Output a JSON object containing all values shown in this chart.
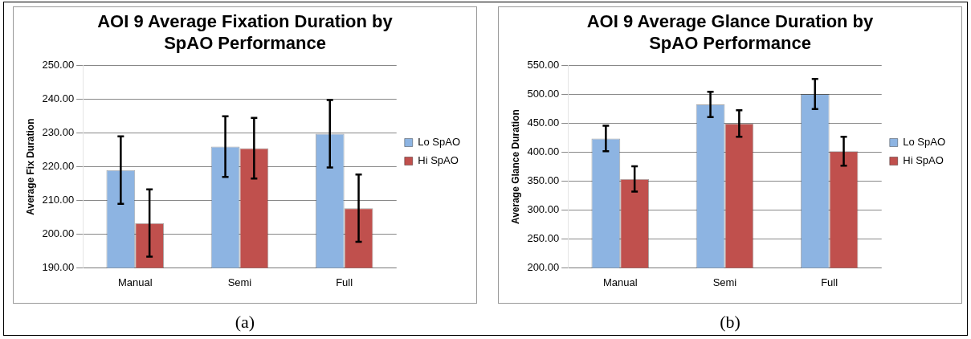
{
  "chart_data": [
    {
      "type": "bar",
      "title": "AOI 9 Average Fixation Duration by SpAO Performance",
      "ylabel": "Average Fix Duration",
      "categories": [
        "Manual",
        "Semi",
        "Full"
      ],
      "series": [
        {
          "name": "Lo SpAO",
          "color": "#8db4e2",
          "values": [
            219,
            226,
            229.8
          ],
          "errors": [
            10,
            9,
            10
          ]
        },
        {
          "name": "Hi SpAO",
          "color": "#c0504d",
          "values": [
            203.3,
            225.5,
            207.7
          ],
          "errors": [
            10,
            9,
            10
          ]
        }
      ],
      "ylim": [
        190,
        250
      ],
      "yticks": [
        {
          "value": 190,
          "label": "190.00"
        },
        {
          "value": 200,
          "label": "200.00"
        },
        {
          "value": 210,
          "label": "210.00"
        },
        {
          "value": 220,
          "label": "220.00"
        },
        {
          "value": 230,
          "label": "230.00"
        },
        {
          "value": 240,
          "label": "240.00"
        },
        {
          "value": 250,
          "label": "250.00"
        }
      ],
      "grid": "y",
      "legend": "right",
      "annotations": [
        "(a)"
      ]
    },
    {
      "type": "bar",
      "title": "AOI 9 Average Glance Duration by SpAO Performance",
      "ylabel": "Average Glance Duration",
      "categories": [
        "Manual",
        "Semi",
        "Full"
      ],
      "series": [
        {
          "name": "Lo SpAO",
          "color": "#8db4e2",
          "values": [
            424,
            483,
            501
          ],
          "errors": [
            22,
            22,
            26
          ]
        },
        {
          "name": "Hi SpAO",
          "color": "#c0504d",
          "values": [
            354,
            450,
            402
          ],
          "errors": [
            22,
            23,
            25
          ]
        }
      ],
      "ylim": [
        200,
        550
      ],
      "yticks": [
        {
          "value": 200,
          "label": "200.00"
        },
        {
          "value": 250,
          "label": "250.00"
        },
        {
          "value": 300,
          "label": "300.00"
        },
        {
          "value": 350,
          "label": "350.00"
        },
        {
          "value": 400,
          "label": "400.00"
        },
        {
          "value": 450,
          "label": "450.00"
        },
        {
          "value": 500,
          "label": "500.00"
        },
        {
          "value": 550,
          "label": "550.00"
        }
      ],
      "grid": "y",
      "legend": "right",
      "annotations": [
        "(b)"
      ]
    }
  ]
}
